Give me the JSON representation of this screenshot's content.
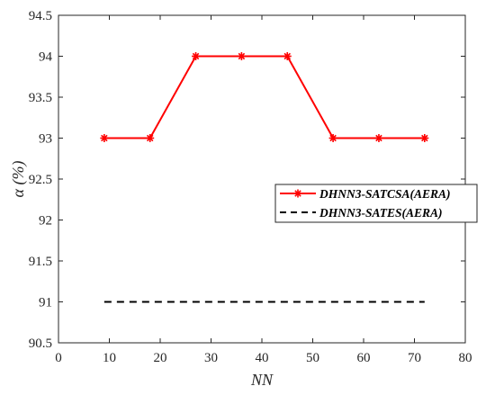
{
  "chart_data": {
    "type": "line",
    "xlabel": "NN",
    "ylabel": "α (%)",
    "xlim": [
      0,
      80
    ],
    "ylim": [
      90.5,
      94.5
    ],
    "xticks": [
      0,
      10,
      20,
      30,
      40,
      50,
      60,
      70,
      80
    ],
    "yticks": [
      90.5,
      91,
      91.5,
      92,
      92.5,
      93,
      93.5,
      94,
      94.5
    ],
    "grid": false,
    "legend_position": "right",
    "series": [
      {
        "name": "DHNN3-SATCSA(AERA)",
        "color": "#ff0000",
        "line_style": "solid",
        "marker": "asterisk",
        "x": [
          9,
          18,
          27,
          36,
          45,
          54,
          63,
          72
        ],
        "y": [
          93,
          93,
          94,
          94,
          94,
          93,
          93,
          93
        ]
      },
      {
        "name": "DHNN3-SATES(AERA)",
        "color": "#000000",
        "line_style": "dashed",
        "marker": "none",
        "x": [
          9,
          72
        ],
        "y": [
          91,
          91
        ]
      }
    ]
  }
}
